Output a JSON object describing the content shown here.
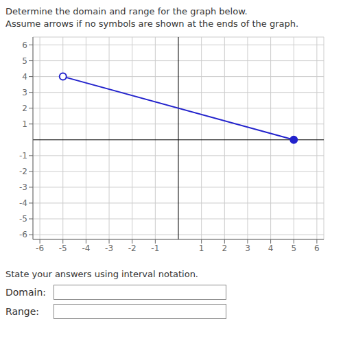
{
  "chart_data": {
    "type": "line",
    "title": "Determine the domain and range for the graph below.",
    "subtitle": "Assume arrows if no symbols are shown at the ends of the graph.",
    "annotations": [
      "State your answers using interval notation.",
      "Domain:",
      "Range:"
    ],
    "x": [
      -5,
      5
    ],
    "series": [
      {
        "type": "line",
        "color": "#2222cc",
        "values": [
          4,
          0
        ]
      },
      {
        "type": "scatter",
        "marker": "open",
        "color": "#2222cc",
        "values": [
          4,
          null
        ]
      },
      {
        "type": "scatter",
        "marker": "filled",
        "color": "#2222cc",
        "values": [
          null,
          0
        ]
      }
    ],
    "xlim": [
      -6.3,
      6.3
    ],
    "xticks": [
      -6,
      -5,
      -4,
      -3,
      -2,
      -1,
      1,
      2,
      3,
      4,
      5,
      6
    ],
    "ylim": [
      -6.3,
      6.5
    ],
    "yticks": [
      -6,
      -5,
      -4,
      -3,
      -2,
      -1,
      1,
      2,
      3,
      4,
      5,
      6
    ],
    "grid": true
  }
}
